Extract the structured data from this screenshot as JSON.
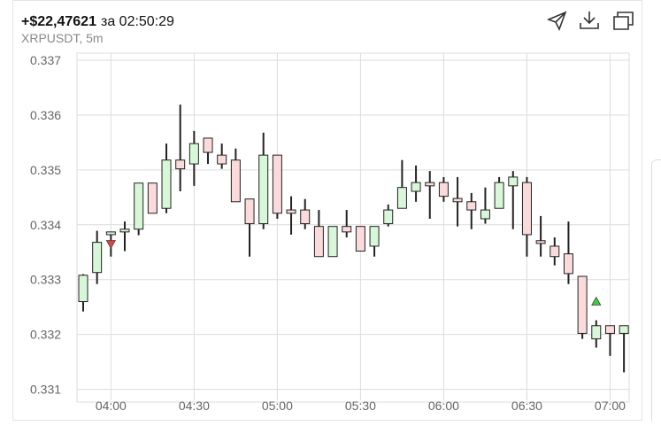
{
  "chart_data": {
    "type": "candlestick",
    "title": "+$22,47621",
    "title_suffix": "за 02:50:29",
    "subtitle": "XRPUSDT, 5m",
    "categories": [
      "03:50",
      "03:55",
      "04:00",
      "04:05",
      "04:10",
      "04:15",
      "04:20",
      "04:25",
      "04:30",
      "04:35",
      "04:40",
      "04:45",
      "04:50",
      "04:55",
      "05:00",
      "05:05",
      "05:10",
      "05:15",
      "05:20",
      "05:25",
      "05:30",
      "05:35",
      "05:40",
      "05:45",
      "05:50",
      "05:55",
      "06:00",
      "06:05",
      "06:10",
      "06:15",
      "06:20",
      "06:25",
      "06:30",
      "06:35",
      "06:40",
      "06:45",
      "06:50",
      "06:55",
      "07:00",
      "07:05"
    ],
    "open": [
      0.3326,
      0.33313,
      0.33382,
      0.33387,
      0.33392,
      0.33476,
      0.3343,
      0.33518,
      0.33511,
      0.33558,
      0.33527,
      0.33518,
      0.33447,
      0.33402,
      0.33527,
      0.33427,
      0.33427,
      0.33397,
      0.33342,
      0.33397,
      0.33397,
      0.33361,
      0.33402,
      0.3343,
      0.33461,
      0.33477,
      0.33477,
      0.33448,
      0.33442,
      0.33411,
      0.3343,
      0.33471,
      0.33477,
      0.33371,
      0.33361,
      0.33347,
      0.33306,
      0.33192,
      0.33216,
      0.33202
    ],
    "high": [
      0.3331,
      0.33389,
      0.33387,
      0.33406,
      0.33476,
      0.33476,
      0.33548,
      0.33619,
      0.33571,
      0.33558,
      0.33548,
      0.33539,
      0.33447,
      0.33568,
      0.33527,
      0.33452,
      0.33447,
      0.33427,
      0.33397,
      0.33427,
      0.33397,
      0.33397,
      0.33437,
      0.33518,
      0.33508,
      0.33498,
      0.33487,
      0.33487,
      0.33458,
      0.33468,
      0.33487,
      0.33498,
      0.33487,
      0.33416,
      0.33377,
      0.33406,
      0.33306,
      0.33226,
      0.33216,
      0.33216
    ],
    "low": [
      0.33242,
      0.33292,
      0.33342,
      0.33352,
      0.33381,
      0.33421,
      0.33421,
      0.33461,
      0.33471,
      0.33511,
      0.33502,
      0.33442,
      0.33342,
      0.33392,
      0.33411,
      0.33382,
      0.33392,
      0.33342,
      0.33342,
      0.33377,
      0.33352,
      0.33342,
      0.33397,
      0.3343,
      0.33442,
      0.33411,
      0.33442,
      0.33397,
      0.33392,
      0.33402,
      0.3343,
      0.33392,
      0.33342,
      0.33342,
      0.33326,
      0.33292,
      0.33192,
      0.33176,
      0.33161,
      0.33131
    ],
    "close": [
      0.33308,
      0.33368,
      0.33387,
      0.33392,
      0.33476,
      0.33421,
      0.33518,
      0.33502,
      0.33548,
      0.33532,
      0.33511,
      0.33442,
      0.33402,
      0.33527,
      0.33421,
      0.33421,
      0.33402,
      0.33342,
      0.33397,
      0.33387,
      0.33352,
      0.33397,
      0.33427,
      0.33468,
      0.33477,
      0.33471,
      0.33452,
      0.33442,
      0.33427,
      0.33427,
      0.33477,
      0.33487,
      0.33382,
      0.33366,
      0.33342,
      0.33311,
      0.33202,
      0.33216,
      0.33202,
      0.33216
    ],
    "up_color": "#d8f7d8",
    "down_color": "#fadada",
    "wick_color": "#222222",
    "markers": [
      {
        "x": "04:00",
        "value": 0.33365,
        "color": "#e84040",
        "direction": "down"
      },
      {
        "x": "06:55",
        "value": 0.3326,
        "color": "#3ccf3c",
        "direction": "up"
      }
    ],
    "ylim": [
      0.3308,
      0.337
    ],
    "yticks": [
      0.331,
      0.332,
      0.333,
      0.334,
      0.335,
      0.336,
      0.337
    ],
    "xticks": [
      "04:00",
      "04:30",
      "05:00",
      "05:30",
      "06:00",
      "06:30",
      "07:00"
    ],
    "grid": true
  }
}
